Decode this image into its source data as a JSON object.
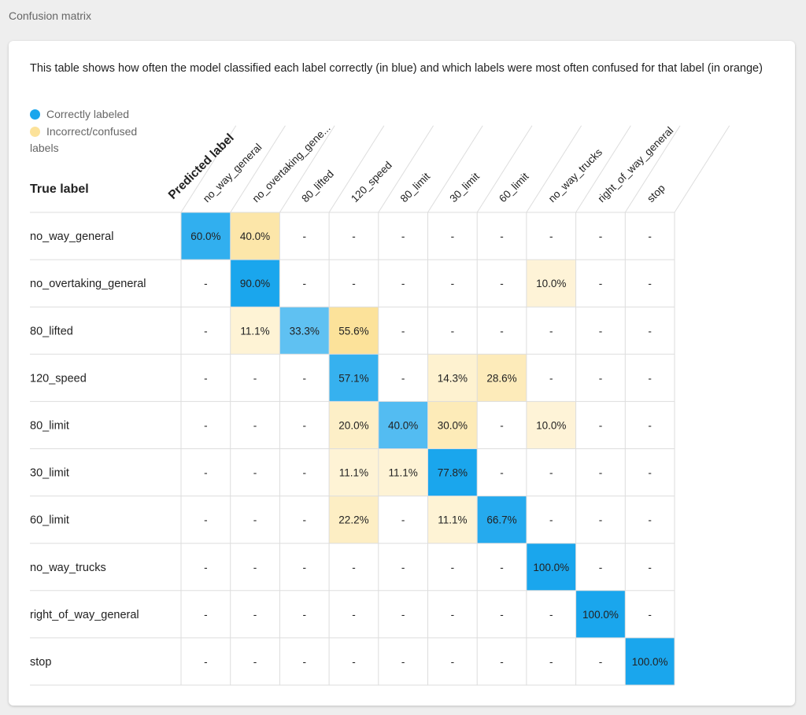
{
  "section_title": "Confusion matrix",
  "description": "This table shows how often the model classified each label correctly (in blue) and which labels were most often confused for that label (in orange)",
  "legend": {
    "correct": "Correctly labeled",
    "incorrect": "Incorrect/confused labels"
  },
  "colors": {
    "correct": "#1aa6ed",
    "incorrect": "#fce29a",
    "legend_correct": "#1aa6ed",
    "legend_incorrect": "#fce29a",
    "grid": "#dddddd"
  },
  "chart_data": {
    "type": "heatmap",
    "title": "Confusion matrix",
    "ylabel": "True label",
    "xlabel": "Predicted label",
    "empty_cell_text": "-",
    "labels": [
      "no_way_general",
      "no_overtaking_general",
      "80_lifted",
      "120_speed",
      "80_limit",
      "30_limit",
      "60_limit",
      "no_way_trucks",
      "right_of_way_general",
      "stop"
    ],
    "column_labels": [
      "no_way_general",
      "no_overtaking_gene...",
      "80_lifted",
      "120_speed",
      "80_limit",
      "30_limit",
      "60_limit",
      "no_way_trucks",
      "right_of_way_general",
      "stop"
    ],
    "values": [
      [
        60.0,
        40.0,
        null,
        null,
        null,
        null,
        null,
        null,
        null,
        null
      ],
      [
        null,
        90.0,
        null,
        null,
        null,
        null,
        null,
        10.0,
        null,
        null
      ],
      [
        null,
        11.1,
        33.3,
        55.6,
        null,
        null,
        null,
        null,
        null,
        null
      ],
      [
        null,
        null,
        null,
        57.1,
        null,
        14.3,
        28.6,
        null,
        null,
        null
      ],
      [
        null,
        null,
        null,
        20.0,
        40.0,
        30.0,
        null,
        10.0,
        null,
        null
      ],
      [
        null,
        null,
        null,
        11.1,
        11.1,
        77.8,
        null,
        null,
        null,
        null
      ],
      [
        null,
        null,
        null,
        22.2,
        null,
        11.1,
        66.7,
        null,
        null,
        null
      ],
      [
        null,
        null,
        null,
        null,
        null,
        null,
        null,
        100.0,
        null,
        null
      ],
      [
        null,
        null,
        null,
        null,
        null,
        null,
        null,
        null,
        100.0,
        null
      ],
      [
        null,
        null,
        null,
        null,
        null,
        null,
        null,
        null,
        null,
        100.0
      ]
    ],
    "unit": "%"
  }
}
